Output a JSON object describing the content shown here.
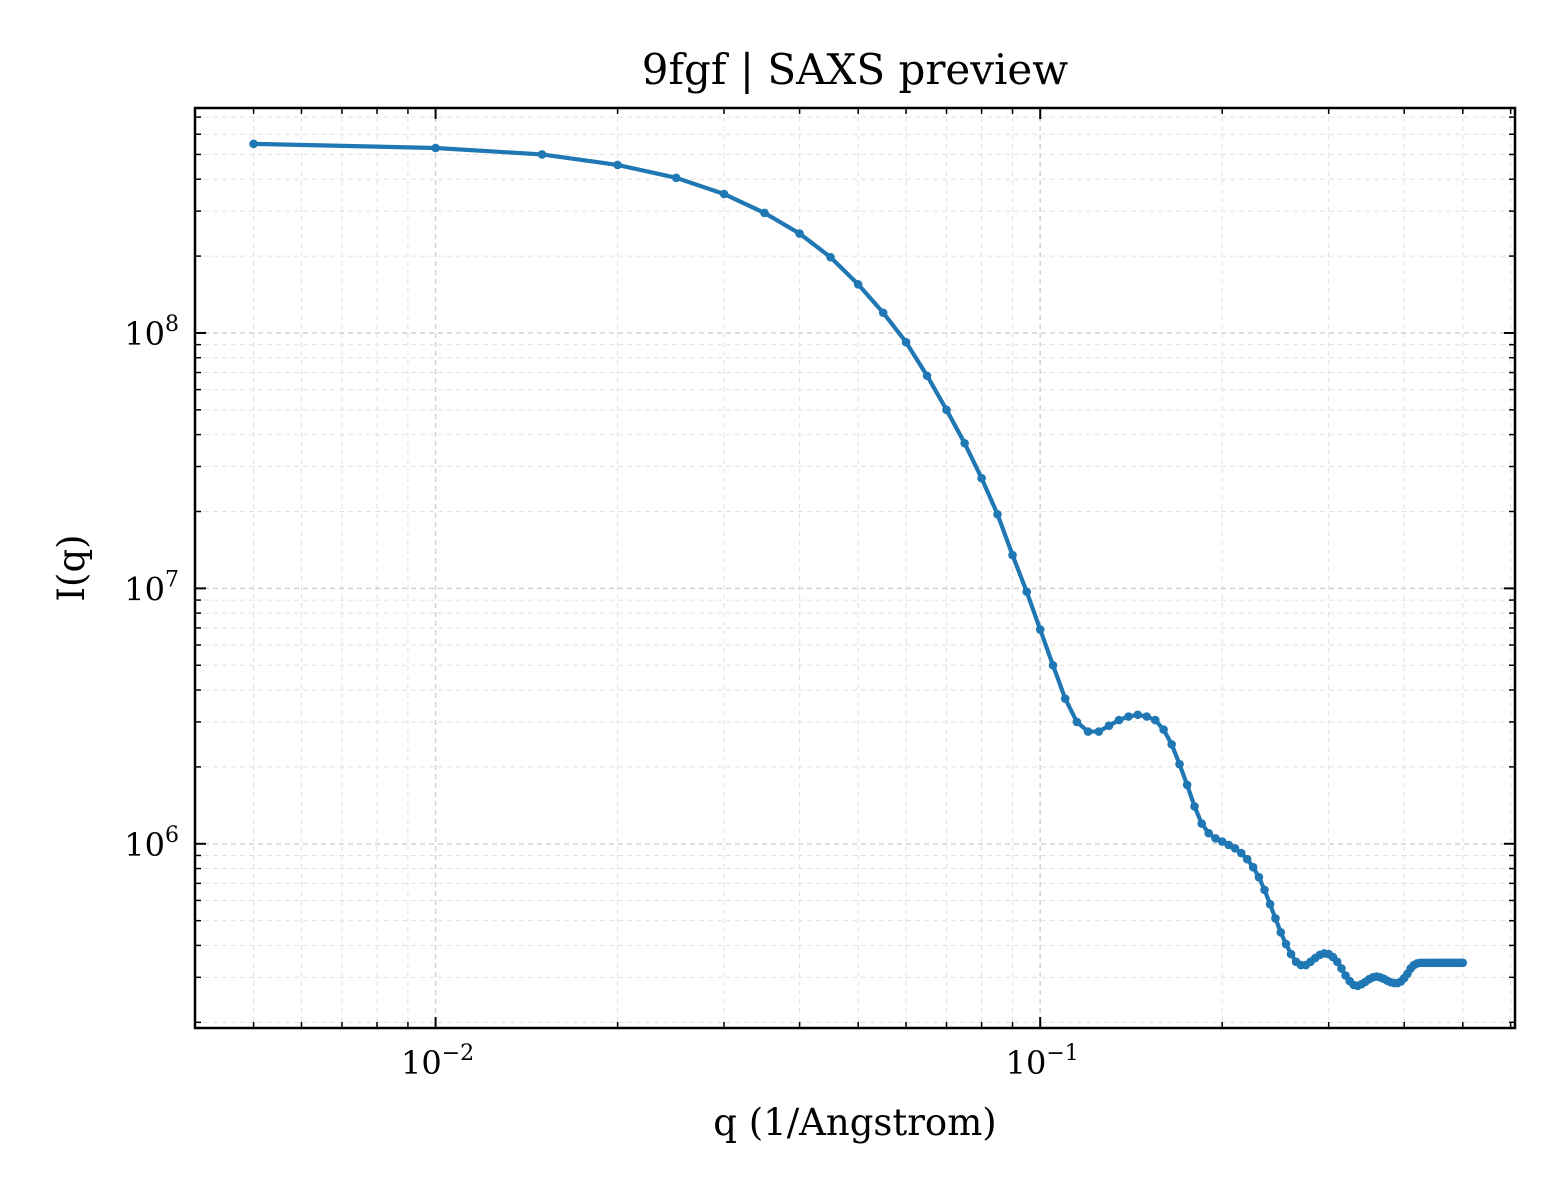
{
  "chart_data": {
    "type": "line",
    "title": "9fgf | SAXS preview",
    "xlabel": "q (1/Angstrom)",
    "ylabel": "I(q)",
    "xscale": "log",
    "yscale": "log",
    "xlim": [
      0.004,
      0.61
    ],
    "ylim": [
      190000,
      760000000
    ],
    "xticks": [
      {
        "value": 0.01,
        "base": "10",
        "exp": "−2"
      },
      {
        "value": 0.1,
        "base": "10",
        "exp": "−1"
      }
    ],
    "yticks": [
      {
        "value": 1000000,
        "base": "10",
        "exp": "6"
      },
      {
        "value": 10000000,
        "base": "10",
        "exp": "7"
      },
      {
        "value": 100000000,
        "base": "10",
        "exp": "8"
      }
    ],
    "grid": true,
    "legend": "none",
    "color": "#1f77b4",
    "series": [
      {
        "x": [
          0.005,
          0.01,
          0.015,
          0.02,
          0.025,
          0.03,
          0.035,
          0.04,
          0.045,
          0.05,
          0.055,
          0.06,
          0.065,
          0.07,
          0.075,
          0.08,
          0.085,
          0.09,
          0.095,
          0.1,
          0.105,
          0.11,
          0.115,
          0.12,
          0.125,
          0.13,
          0.135,
          0.14,
          0.145,
          0.15,
          0.155,
          0.16,
          0.165,
          0.17,
          0.175,
          0.18,
          0.185,
          0.19,
          0.195,
          0.2,
          0.205,
          0.21,
          0.215,
          0.22,
          0.225,
          0.23,
          0.235,
          0.24,
          0.245,
          0.25,
          0.255,
          0.26,
          0.265,
          0.27,
          0.275,
          0.28,
          0.285,
          0.29,
          0.295,
          0.3,
          0.305,
          0.31,
          0.315,
          0.32,
          0.325,
          0.33,
          0.335,
          0.34,
          0.345,
          0.35,
          0.355,
          0.36,
          0.365,
          0.37,
          0.375,
          0.38,
          0.385,
          0.39,
          0.395,
          0.4,
          0.405,
          0.41,
          0.415,
          0.42,
          0.425,
          0.43,
          0.435,
          0.44,
          0.445,
          0.45,
          0.455,
          0.46,
          0.465,
          0.47,
          0.475,
          0.48,
          0.485,
          0.49,
          0.495,
          0.5
        ],
        "y": [
          550000000,
          530000000,
          500000000,
          455000000,
          405000000,
          350000000,
          295000000,
          245000000,
          198000000,
          155000000,
          120000000,
          92000000,
          68000000,
          50000000,
          37000000,
          27000000,
          19500000,
          13500000,
          9700000,
          6900000,
          5000000,
          3700000,
          3000000,
          2750000,
          2750000,
          2900000,
          3050000,
          3150000,
          3200000,
          3150000,
          3050000,
          2800000,
          2450000,
          2050000,
          1700000,
          1400000,
          1200000,
          1100000,
          1050000,
          1020000,
          990000,
          960000,
          920000,
          870000,
          810000,
          740000,
          660000,
          580000,
          510000,
          450000,
          405000,
          370000,
          345000,
          335000,
          335000,
          345000,
          357000,
          367000,
          372000,
          370000,
          360000,
          345000,
          325000,
          305000,
          290000,
          280000,
          278000,
          282000,
          288000,
          295000,
          300000,
          302000,
          300000,
          296000,
          291000,
          287000,
          285000,
          285000,
          289000,
          298000,
          310000,
          325000,
          335000,
          340000,
          342000,
          342000,
          342000,
          342000,
          342000,
          342000,
          342000,
          342000,
          342000,
          342000,
          342000,
          342000,
          342000,
          342000,
          342000,
          342000
        ]
      }
    ]
  }
}
